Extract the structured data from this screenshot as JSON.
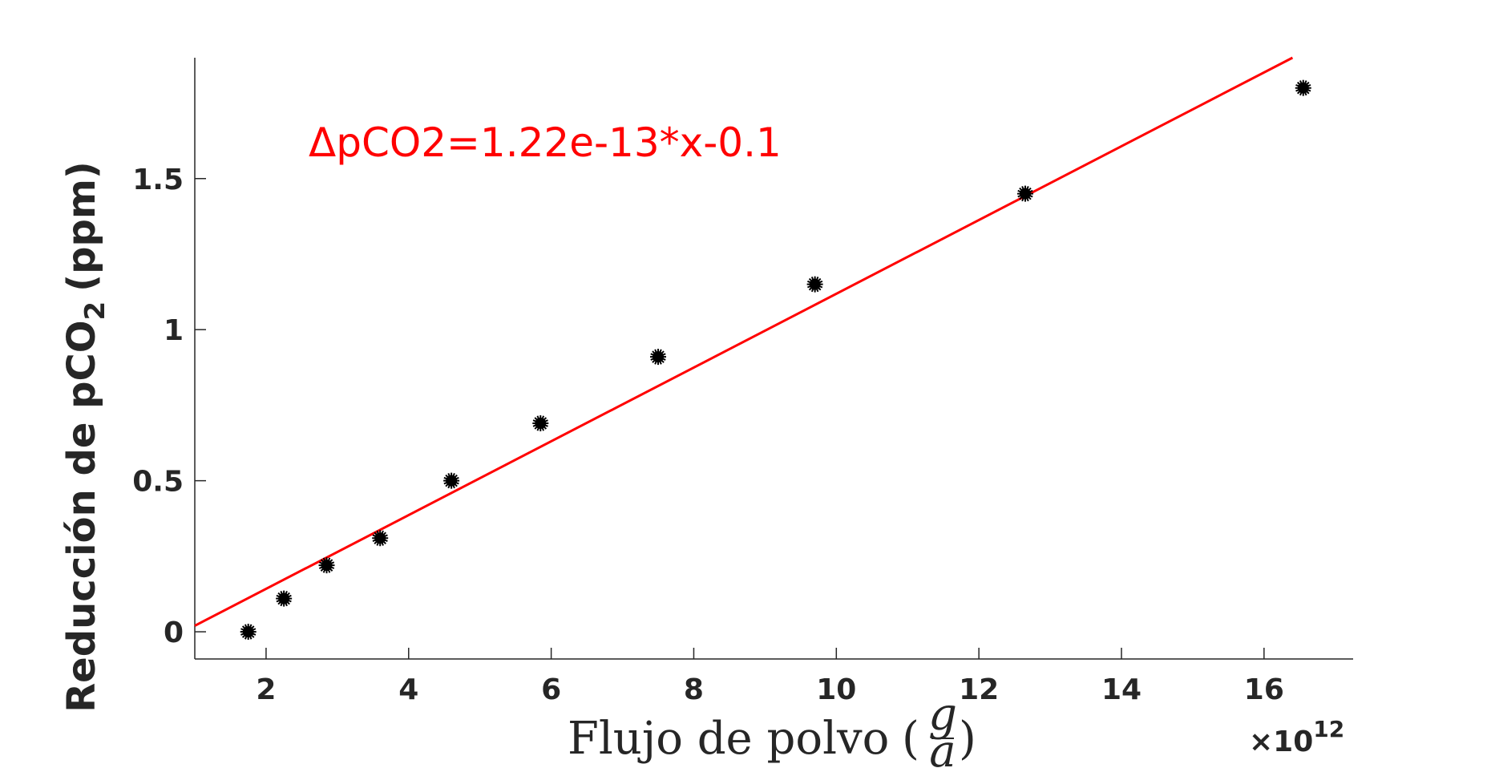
{
  "chart_data": {
    "type": "scatter",
    "xlabel": "Flujo de polvo",
    "xlabel_fraction": {
      "numerator": "g",
      "denominator": "a"
    },
    "ylabel": "Reducción de pCO",
    "ylabel_subscript": "2",
    "ylabel_unit": "(ppm)",
    "x_exponent_base": "×10",
    "x_exponent_power": "12",
    "xlim": [
      1.0,
      17.25
    ],
    "ylim": [
      -0.09,
      1.9
    ],
    "grid": false,
    "x_ticks": [
      2,
      4,
      6,
      8,
      10,
      12,
      14,
      16
    ],
    "x_tick_labels": [
      "2",
      "4",
      "6",
      "8",
      "10",
      "12",
      "14",
      "16"
    ],
    "y_ticks": [
      0,
      0.5,
      1,
      1.5
    ],
    "y_tick_labels": [
      "0",
      "0.5",
      "1",
      "1.5"
    ],
    "series": [
      {
        "type": "scatter",
        "marker": "asterisk",
        "color": "#000000",
        "x": [
          1.75,
          2.25,
          2.85,
          3.6,
          4.6,
          5.85,
          7.5,
          9.7,
          12.65,
          16.55
        ],
        "y": [
          0.0,
          0.11,
          0.22,
          0.31,
          0.5,
          0.69,
          0.91,
          1.15,
          1.45,
          1.8
        ]
      },
      {
        "type": "line",
        "color": "#ff0000",
        "x": [
          1.0,
          16.4
        ],
        "y": [
          0.02,
          1.9
        ]
      }
    ],
    "annotation": {
      "text": "ΔpCO2=1.22e-13*x-0.1",
      "color": "#ff0000"
    }
  }
}
